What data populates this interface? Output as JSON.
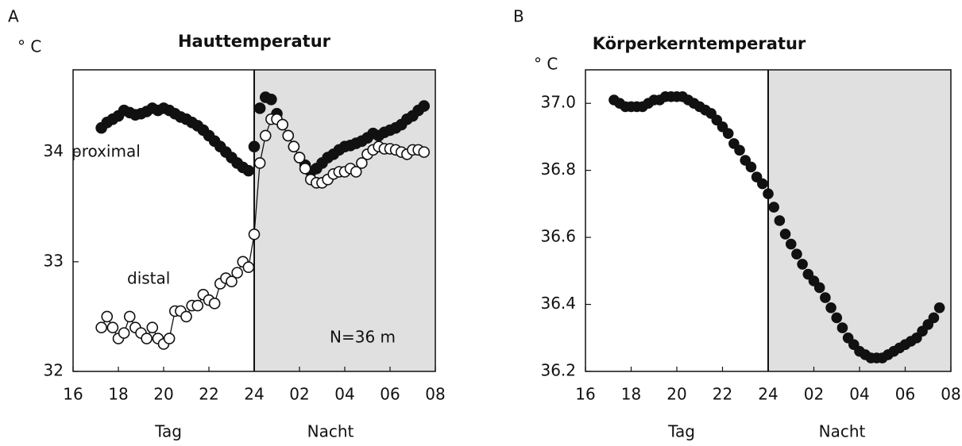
{
  "chart_data": [
    {
      "type": "scatter",
      "panel": "A",
      "title": "Hauttemperatur",
      "y_unit": "° C",
      "xlabels": [
        "Tag",
        "Nacht"
      ],
      "annotations": [
        "proximal",
        "distal",
        "N=36 m"
      ],
      "xlim": [
        16,
        32
      ],
      "xticks": [
        16,
        18,
        20,
        22,
        24,
        {
          "value": 26,
          "label": "02"
        },
        {
          "value": 28,
          "label": "04"
        },
        {
          "value": 30,
          "label": "06"
        },
        {
          "value": 32,
          "label": "08"
        }
      ],
      "ylim": [
        32,
        34.75
      ],
      "yticks": [
        32,
        33,
        34
      ],
      "shaded_xrange": [
        24,
        32
      ],
      "x": [
        17.25,
        17.5,
        17.75,
        18,
        18.25,
        18.5,
        18.75,
        19,
        19.25,
        19.5,
        19.75,
        20,
        20.25,
        20.5,
        20.75,
        21,
        21.25,
        21.5,
        21.75,
        22,
        22.25,
        22.5,
        22.75,
        23,
        23.25,
        23.5,
        23.75,
        24,
        24.25,
        24.5,
        24.75,
        25,
        25.25,
        25.5,
        25.75,
        26,
        26.25,
        26.5,
        26.75,
        27,
        27.25,
        27.5,
        27.75,
        28,
        28.25,
        28.5,
        28.75,
        29,
        29.25,
        29.5,
        29.75,
        30,
        30.25,
        30.5,
        30.75,
        31,
        31.25,
        31.5
      ],
      "series": [
        {
          "name": "proximal",
          "color": "#111111",
          "marker": "filled",
          "line": false,
          "values": [
            34.22,
            34.27,
            34.3,
            34.33,
            34.38,
            34.36,
            34.34,
            34.35,
            34.37,
            34.4,
            34.38,
            34.4,
            34.38,
            34.35,
            34.32,
            34.3,
            34.27,
            34.24,
            34.2,
            34.15,
            34.1,
            34.05,
            34.0,
            33.95,
            33.9,
            33.86,
            33.83,
            34.05,
            34.4,
            34.5,
            34.48,
            34.35,
            34.25,
            34.15,
            34.05,
            33.95,
            33.88,
            33.82,
            33.85,
            33.9,
            33.95,
            33.98,
            34.02,
            34.05,
            34.06,
            34.08,
            34.1,
            34.13,
            34.17,
            34.15,
            34.18,
            34.2,
            34.22,
            34.25,
            34.3,
            34.33,
            34.38,
            34.42
          ]
        },
        {
          "name": "distal",
          "color": "#111111",
          "marker": "open",
          "line": true,
          "values": [
            32.4,
            32.5,
            32.4,
            32.3,
            32.35,
            32.5,
            32.4,
            32.35,
            32.3,
            32.4,
            32.3,
            32.25,
            32.3,
            32.55,
            32.55,
            32.5,
            32.6,
            32.6,
            32.7,
            32.65,
            32.62,
            32.8,
            32.85,
            32.82,
            32.9,
            33.0,
            32.95,
            33.25,
            33.9,
            34.15,
            34.3,
            34.3,
            34.25,
            34.15,
            34.05,
            33.95,
            33.85,
            33.75,
            33.72,
            33.72,
            33.75,
            33.8,
            33.82,
            33.82,
            33.85,
            33.82,
            33.9,
            33.98,
            34.02,
            34.05,
            34.03,
            34.03,
            34.02,
            34.0,
            33.98,
            34.02,
            34.02,
            34.0
          ]
        }
      ]
    },
    {
      "type": "scatter",
      "panel": "B",
      "title": "Körperkerntemperatur",
      "y_unit": "° C",
      "xlabels": [
        "Tag",
        "Nacht"
      ],
      "xlim": [
        16,
        32
      ],
      "xticks": [
        16,
        18,
        20,
        22,
        24,
        {
          "value": 26,
          "label": "02"
        },
        {
          "value": 28,
          "label": "04"
        },
        {
          "value": 30,
          "label": "06"
        },
        {
          "value": 32,
          "label": "08"
        }
      ],
      "ylim": [
        36.2,
        37.1
      ],
      "yticks": [
        36.2,
        36.4,
        36.6,
        36.8,
        {
          "value": 37,
          "label": "37.0"
        }
      ],
      "shaded_xrange": [
        24,
        32
      ],
      "x": [
        17.25,
        17.5,
        17.75,
        18,
        18.25,
        18.5,
        18.75,
        19,
        19.25,
        19.5,
        19.75,
        20,
        20.25,
        20.5,
        20.75,
        21,
        21.25,
        21.5,
        21.75,
        22,
        22.25,
        22.5,
        22.75,
        23,
        23.25,
        23.5,
        23.75,
        24,
        24.25,
        24.5,
        24.75,
        25,
        25.25,
        25.5,
        25.75,
        26,
        26.25,
        26.5,
        26.75,
        27,
        27.25,
        27.5,
        27.75,
        28,
        28.25,
        28.5,
        28.75,
        29,
        29.25,
        29.5,
        29.75,
        30,
        30.25,
        30.5,
        30.75,
        31,
        31.25,
        31.5
      ],
      "series": [
        {
          "color": "#111111",
          "marker": "filled",
          "line": false,
          "values": [
            37.01,
            37.0,
            36.99,
            36.99,
            36.99,
            36.99,
            37.0,
            37.01,
            37.01,
            37.02,
            37.02,
            37.02,
            37.02,
            37.01,
            37.0,
            36.99,
            36.98,
            36.97,
            36.95,
            36.93,
            36.91,
            36.88,
            36.86,
            36.83,
            36.81,
            36.78,
            36.76,
            36.73,
            36.69,
            36.65,
            36.61,
            36.58,
            36.55,
            36.52,
            36.49,
            36.47,
            36.45,
            36.42,
            36.39,
            36.36,
            36.33,
            36.3,
            36.28,
            36.26,
            36.25,
            36.24,
            36.24,
            36.24,
            36.25,
            36.26,
            36.27,
            36.28,
            36.29,
            36.3,
            36.32,
            36.34,
            36.36,
            36.39
          ]
        }
      ]
    }
  ]
}
